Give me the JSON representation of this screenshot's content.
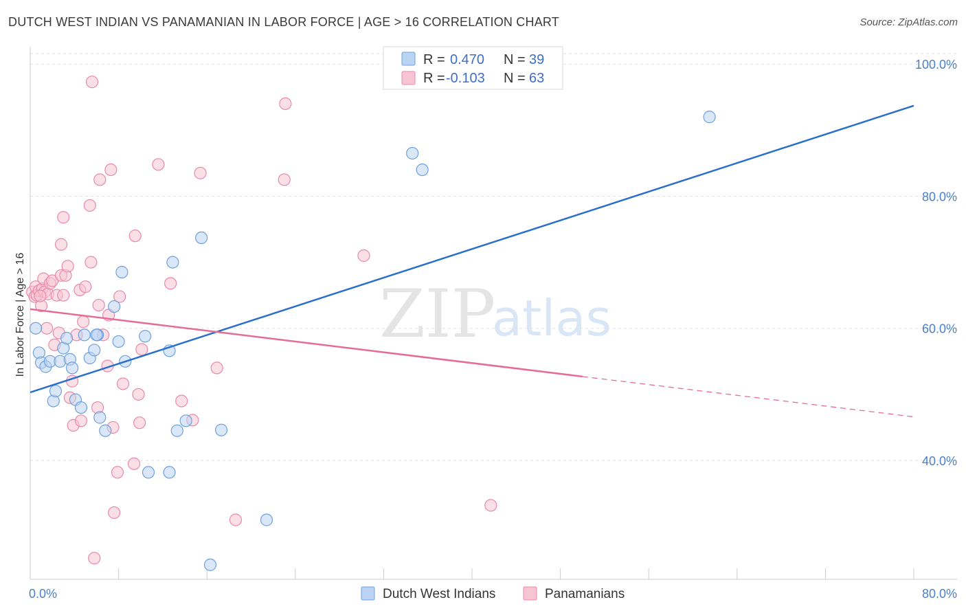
{
  "header": {
    "title": "DUTCH WEST INDIAN VS PANAMANIAN IN LABOR FORCE | AGE > 16 CORRELATION CHART",
    "source": "Source: ZipAtlas.com"
  },
  "watermark": {
    "zip": "ZIP",
    "atlas": "atlas"
  },
  "colors": {
    "blue_fill": "#b9d3f2",
    "blue_stroke": "#6fa0dc",
    "blue_line": "#2a6fca",
    "pink_fill": "#f7c4d4",
    "pink_stroke": "#e88aa8",
    "pink_line": "#e36d97",
    "tick_label": "#4a80c8"
  },
  "legend": {
    "rows": [
      {
        "r_label": "R =",
        "r_value": "0.470",
        "n_label": "N =",
        "n_value": "39"
      },
      {
        "r_label": "R =",
        "r_value": "-0.103",
        "n_label": "N =",
        "n_value": "63"
      }
    ]
  },
  "bottom_legend": [
    "Dutch West Indians",
    "Panamanians"
  ],
  "chart_data": {
    "type": "scatter",
    "title": "DUTCH WEST INDIAN VS PANAMANIAN IN LABOR FORCE | AGE > 16 CORRELATION CHART",
    "xlabel": "",
    "ylabel": "In Labor Force | Age > 16",
    "xlim": [
      0,
      80
    ],
    "ylim": [
      22,
      102
    ],
    "x_tick_labels": [
      "0.0%",
      "80.0%"
    ],
    "y_ticks": [
      40,
      60,
      80,
      100
    ],
    "y_tick_labels": [
      "40.0%",
      "60.0%",
      "80.0%",
      "100.0%"
    ],
    "grid": true,
    "legend_position": "top-center",
    "series": [
      {
        "name": "Dutch West Indians",
        "r": 0.47,
        "n": 39,
        "points": [
          [
            0.5,
            60.0
          ],
          [
            0.8,
            56.3
          ],
          [
            1.0,
            54.8
          ],
          [
            1.4,
            54.2
          ],
          [
            1.8,
            55.0
          ],
          [
            2.1,
            49.0
          ],
          [
            2.3,
            50.5
          ],
          [
            2.7,
            55.0
          ],
          [
            3.0,
            57.0
          ],
          [
            3.3,
            58.5
          ],
          [
            3.6,
            55.3
          ],
          [
            3.8,
            54.0
          ],
          [
            4.1,
            49.2
          ],
          [
            4.6,
            48.0
          ],
          [
            4.9,
            59.0
          ],
          [
            5.4,
            55.5
          ],
          [
            5.8,
            56.7
          ],
          [
            6.1,
            59.0
          ],
          [
            6.3,
            46.5
          ],
          [
            6.8,
            44.5
          ],
          [
            7.6,
            63.3
          ],
          [
            8.0,
            58.0
          ],
          [
            8.3,
            68.5
          ],
          [
            8.6,
            55.0
          ],
          [
            10.4,
            58.8
          ],
          [
            10.7,
            38.2
          ],
          [
            12.6,
            56.6
          ],
          [
            12.9,
            70.0
          ],
          [
            13.3,
            44.5
          ],
          [
            14.1,
            46.0
          ],
          [
            15.5,
            73.7
          ],
          [
            16.3,
            24.2
          ],
          [
            17.3,
            44.6
          ],
          [
            21.4,
            31.0
          ],
          [
            34.6,
            86.5
          ],
          [
            35.5,
            84.0
          ],
          [
            61.5,
            92.0
          ],
          [
            12.6,
            38.2
          ],
          [
            6.0,
            59.0
          ]
        ],
        "trend": {
          "x0": 0,
          "y0": 50.3,
          "x1": 80,
          "y1": 93.7
        }
      },
      {
        "name": "Panamanians",
        "r": -0.103,
        "n": 63,
        "points": [
          [
            0.2,
            65.5
          ],
          [
            0.4,
            64.8
          ],
          [
            0.5,
            66.3
          ],
          [
            0.6,
            65.0
          ],
          [
            0.8,
            65.7
          ],
          [
            1.0,
            63.4
          ],
          [
            1.1,
            66.0
          ],
          [
            1.2,
            67.5
          ],
          [
            1.3,
            65.5
          ],
          [
            1.5,
            60.0
          ],
          [
            1.6,
            65.2
          ],
          [
            1.8,
            66.8
          ],
          [
            2.0,
            67.2
          ],
          [
            2.2,
            57.5
          ],
          [
            2.4,
            65.0
          ],
          [
            2.6,
            59.3
          ],
          [
            2.8,
            68.0
          ],
          [
            2.8,
            72.7
          ],
          [
            3.0,
            76.8
          ],
          [
            3.2,
            68.0
          ],
          [
            3.4,
            69.4
          ],
          [
            3.6,
            49.5
          ],
          [
            3.8,
            52.0
          ],
          [
            3.9,
            45.3
          ],
          [
            4.2,
            59.0
          ],
          [
            4.5,
            65.8
          ],
          [
            4.6,
            46.0
          ],
          [
            4.8,
            61.0
          ],
          [
            5.0,
            66.3
          ],
          [
            5.4,
            78.6
          ],
          [
            5.5,
            70.0
          ],
          [
            5.6,
            97.3
          ],
          [
            5.8,
            25.2
          ],
          [
            6.1,
            48.0
          ],
          [
            6.2,
            63.5
          ],
          [
            6.3,
            82.5
          ],
          [
            7.0,
            54.3
          ],
          [
            7.1,
            62.0
          ],
          [
            7.3,
            84.0
          ],
          [
            7.5,
            45.0
          ],
          [
            7.6,
            32.1
          ],
          [
            7.9,
            38.2
          ],
          [
            8.1,
            64.8
          ],
          [
            8.4,
            51.6
          ],
          [
            9.4,
            39.5
          ],
          [
            9.5,
            74.0
          ],
          [
            9.8,
            50.0
          ],
          [
            9.9,
            45.7
          ],
          [
            10.1,
            56.8
          ],
          [
            11.6,
            84.8
          ],
          [
            12.7,
            66.8
          ],
          [
            13.7,
            49.0
          ],
          [
            14.7,
            46.1
          ],
          [
            15.4,
            83.5
          ],
          [
            16.9,
            54.0
          ],
          [
            18.6,
            31.0
          ],
          [
            23.0,
            82.5
          ],
          [
            23.1,
            94.0
          ],
          [
            30.2,
            71.0
          ],
          [
            41.7,
            33.2
          ],
          [
            6.6,
            59.0
          ],
          [
            0.9,
            64.9
          ],
          [
            3.0,
            65.0
          ]
        ],
        "trend": {
          "x0": 0,
          "y0": 62.9,
          "x1": 50,
          "y1": 52.7,
          "dash_x1": 80,
          "dash_y1": 46.6
        }
      }
    ]
  }
}
